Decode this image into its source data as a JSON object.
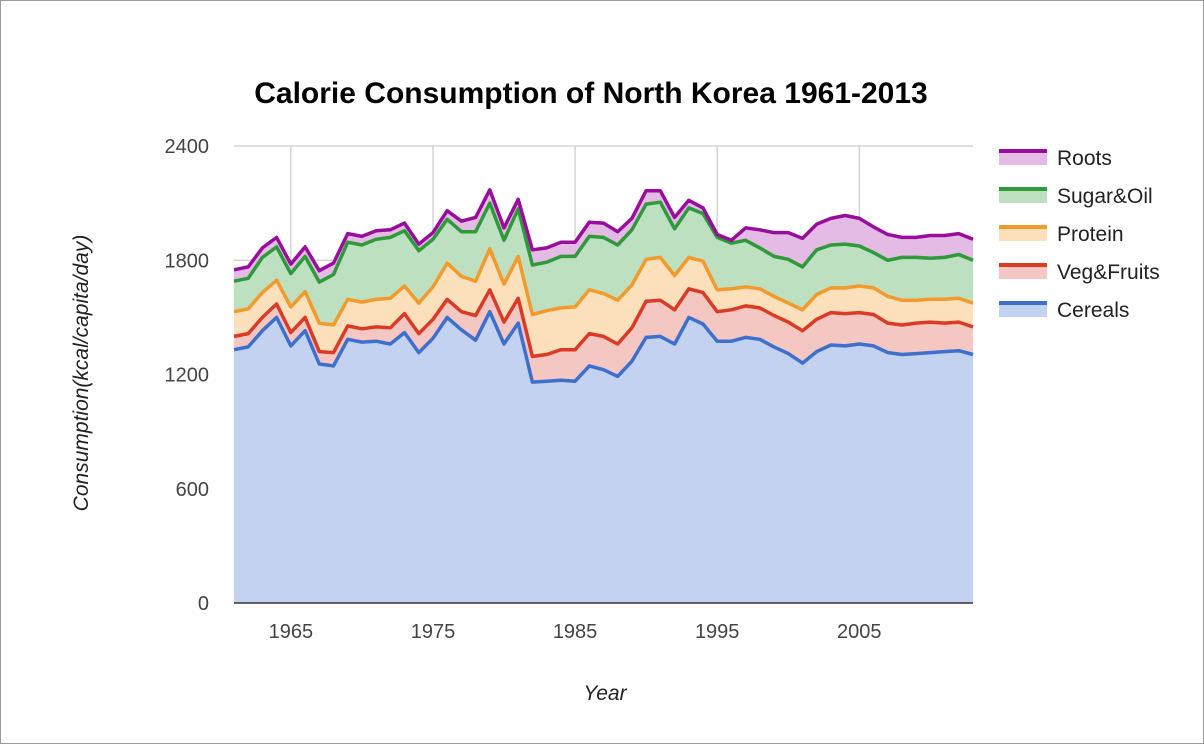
{
  "chart_data": {
    "type": "area",
    "stacked": true,
    "title": "Calorie Consumption of North Korea 1961-2013",
    "xlabel": "Year",
    "ylabel": "Consumption(kcal/capita/day)",
    "xlim": [
      1961,
      2013
    ],
    "ylim": [
      0,
      2400
    ],
    "x_ticks": [
      1965,
      1975,
      1985,
      1995,
      2005
    ],
    "y_ticks": [
      0,
      600,
      1200,
      1800,
      2400
    ],
    "grid": true,
    "legend_position": "right",
    "x": [
      1961,
      1962,
      1963,
      1964,
      1965,
      1966,
      1967,
      1968,
      1969,
      1970,
      1971,
      1972,
      1973,
      1974,
      1975,
      1976,
      1977,
      1978,
      1979,
      1980,
      1981,
      1982,
      1983,
      1984,
      1985,
      1986,
      1987,
      1988,
      1989,
      1990,
      1991,
      1992,
      1993,
      1994,
      1995,
      1996,
      1997,
      1998,
      1999,
      2000,
      2001,
      2002,
      2003,
      2004,
      2005,
      2006,
      2007,
      2008,
      2009,
      2010,
      2011,
      2012,
      2013
    ],
    "series": [
      {
        "name": "Cereals",
        "color": "#3d6fcc",
        "fill": "#c3d2f0",
        "values": [
          1330,
          1345,
          1430,
          1500,
          1350,
          1430,
          1255,
          1245,
          1385,
          1370,
          1375,
          1360,
          1420,
          1315,
          1390,
          1500,
          1435,
          1380,
          1530,
          1360,
          1470,
          1160,
          1165,
          1170,
          1165,
          1245,
          1225,
          1190,
          1270,
          1395,
          1400,
          1360,
          1500,
          1465,
          1375,
          1375,
          1395,
          1385,
          1345,
          1310,
          1260,
          1320,
          1355,
          1350,
          1360,
          1350,
          1315,
          1305,
          1310,
          1315,
          1320,
          1325,
          1305
        ]
      },
      {
        "name": "Veg&Fruits",
        "color": "#db3a25",
        "fill": "#f4c7c3",
        "values": [
          70,
          70,
          70,
          70,
          70,
          70,
          65,
          70,
          70,
          70,
          75,
          85,
          100,
          100,
          100,
          95,
          95,
          130,
          115,
          115,
          130,
          135,
          140,
          160,
          165,
          170,
          175,
          170,
          175,
          190,
          190,
          180,
          150,
          165,
          155,
          165,
          165,
          165,
          165,
          165,
          170,
          170,
          170,
          170,
          165,
          165,
          155,
          155,
          160,
          160,
          150,
          150,
          145
        ]
      },
      {
        "name": "Protein",
        "color": "#f29a2c",
        "fill": "#fce0bc",
        "values": [
          130,
          130,
          130,
          125,
          135,
          135,
          150,
          145,
          140,
          140,
          145,
          155,
          145,
          160,
          170,
          190,
          185,
          180,
          215,
          200,
          220,
          220,
          230,
          220,
          225,
          230,
          225,
          230,
          225,
          220,
          225,
          180,
          165,
          165,
          115,
          110,
          100,
          100,
          100,
          100,
          110,
          130,
          130,
          135,
          140,
          140,
          140,
          130,
          120,
          120,
          125,
          125,
          125
        ]
      },
      {
        "name": "Sugar&Oil",
        "color": "#2e9a3a",
        "fill": "#bde0c0",
        "values": [
          160,
          160,
          185,
          175,
          175,
          185,
          215,
          265,
          300,
          300,
          315,
          320,
          290,
          275,
          250,
          230,
          235,
          260,
          240,
          230,
          250,
          260,
          255,
          270,
          265,
          280,
          295,
          290,
          290,
          290,
          290,
          245,
          260,
          250,
          275,
          240,
          245,
          215,
          210,
          230,
          225,
          235,
          225,
          230,
          210,
          185,
          190,
          225,
          225,
          215,
          220,
          230,
          225
        ]
      },
      {
        "name": "Roots",
        "color": "#990d9c",
        "fill": "#e3bbe4",
        "values": [
          60,
          60,
          50,
          50,
          50,
          50,
          60,
          60,
          45,
          45,
          45,
          40,
          40,
          35,
          35,
          45,
          55,
          75,
          70,
          65,
          50,
          80,
          75,
          75,
          75,
          75,
          75,
          70,
          60,
          70,
          60,
          60,
          40,
          30,
          15,
          15,
          65,
          95,
          125,
          140,
          150,
          135,
          140,
          150,
          145,
          135,
          135,
          105,
          105,
          120,
          115,
          110,
          110
        ]
      }
    ]
  }
}
